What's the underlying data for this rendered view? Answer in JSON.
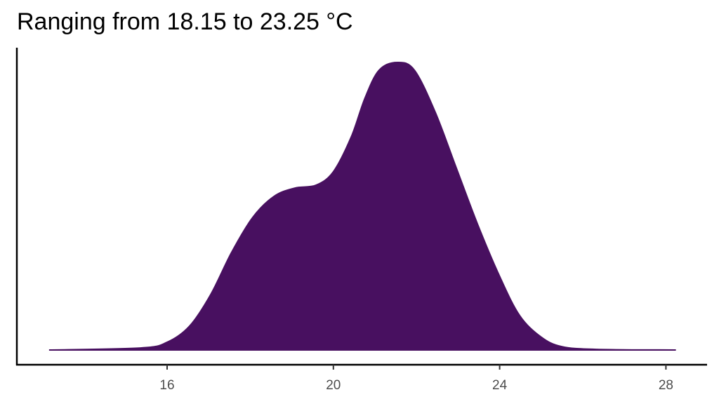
{
  "chart_data": {
    "type": "area",
    "title": "Ranging from 18.15 to 23.25 °C",
    "xlabel": "",
    "ylabel": "",
    "xlim": [
      13.16,
      28.24
    ],
    "x_ticks": [
      "16",
      "20",
      "24",
      "28"
    ],
    "x_tick_values": [
      16,
      20,
      24,
      28
    ],
    "y_ticks": [],
    "grid": false,
    "legend": "none",
    "fill_color": "#481060",
    "y_units": "relative density (peak = 1)",
    "x": [
      13.16,
      15.36,
      16.0,
      16.54,
      17.05,
      17.55,
      18.06,
      18.57,
      19.07,
      19.58,
      20.0,
      20.43,
      20.76,
      21.1,
      21.54,
      21.95,
      22.45,
      22.96,
      23.47,
      24.0,
      24.48,
      24.99,
      25.49,
      26.34,
      28.24
    ],
    "y": [
      0,
      0.007,
      0.027,
      0.083,
      0.193,
      0.339,
      0.461,
      0.534,
      0.563,
      0.573,
      0.62,
      0.741,
      0.876,
      0.973,
      1.0,
      0.973,
      0.827,
      0.632,
      0.437,
      0.256,
      0.12,
      0.046,
      0.012,
      0.002,
      0
    ]
  }
}
